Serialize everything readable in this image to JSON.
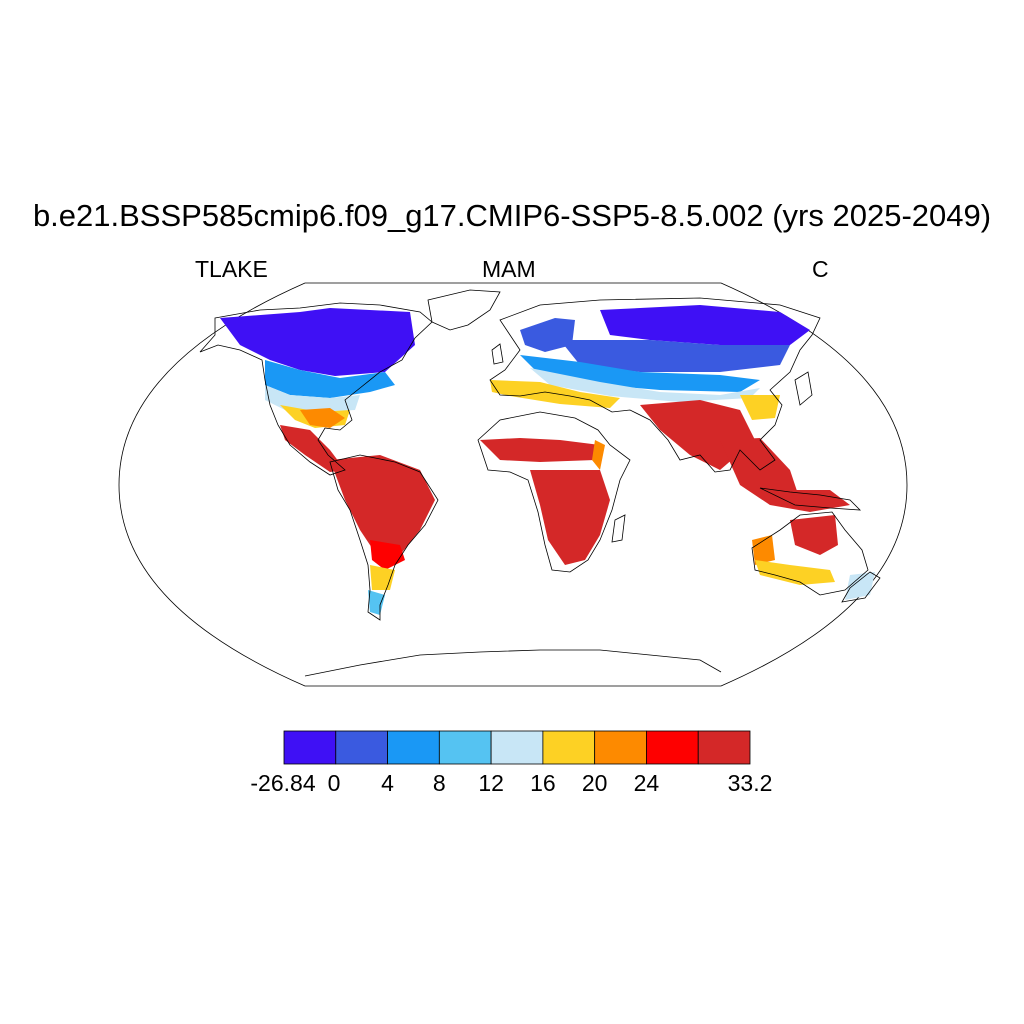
{
  "title": "b.e21.BSSP585cmip6.f09_g17.CMIP6-SSP5-8.5.002 (yrs 2025-2049)",
  "subtitle_left": "TLAKE",
  "subtitle_center": "MAM",
  "subtitle_right": "C",
  "colorbar": {
    "labels": [
      "-26.84",
      "0",
      "4",
      "8",
      "12",
      "16",
      "20",
      "24",
      "33.2"
    ],
    "colors": [
      "#3f10f5",
      "#3a5ae0",
      "#1a98f5",
      "#55c3f2",
      "#c8e6f6",
      "#fdd124",
      "#fd8a00",
      "#fe0000",
      "#d42828"
    ]
  }
}
